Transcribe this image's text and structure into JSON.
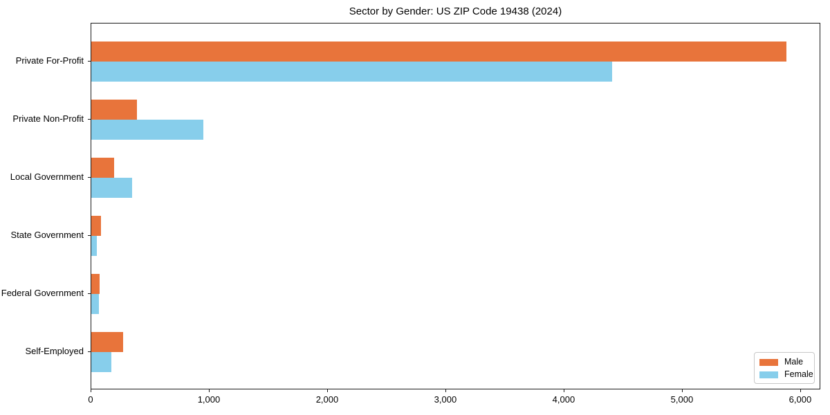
{
  "title": "Sector by Gender: US ZIP Code 19438 (2024)",
  "colors": {
    "male": "#e8743b",
    "female": "#87ceeb",
    "axis": "#1a1a1a",
    "background": "#ffffff",
    "legend_border": "#c8c8c8"
  },
  "legend": {
    "position": "lower right",
    "items": [
      {
        "label": "Male"
      },
      {
        "label": "Female"
      }
    ]
  },
  "chart_data": {
    "type": "bar",
    "orientation": "horizontal",
    "title": "Sector by Gender: US ZIP Code 19438 (2024)",
    "xlabel": "",
    "ylabel": "",
    "categories": [
      "Private For-Profit",
      "Private Non-Profit",
      "Local Government",
      "State Government",
      "Federal Government",
      "Self-Employed"
    ],
    "series": [
      {
        "name": "Male",
        "color": "#e8743b",
        "values": [
          5877,
          385,
          192,
          82,
          68,
          267
        ]
      },
      {
        "name": "Female",
        "color": "#87ceeb",
        "values": [
          4404,
          946,
          343,
          45,
          63,
          168
        ]
      }
    ],
    "xlim": [
      0,
      6170
    ],
    "xticks": [
      0,
      1000,
      2000,
      3000,
      4000,
      5000,
      6000
    ],
    "xtick_labels": [
      "0",
      "1,000",
      "2,000",
      "3,000",
      "4,000",
      "5,000",
      "6,000"
    ],
    "grid": false,
    "legend_position": "lower right"
  }
}
